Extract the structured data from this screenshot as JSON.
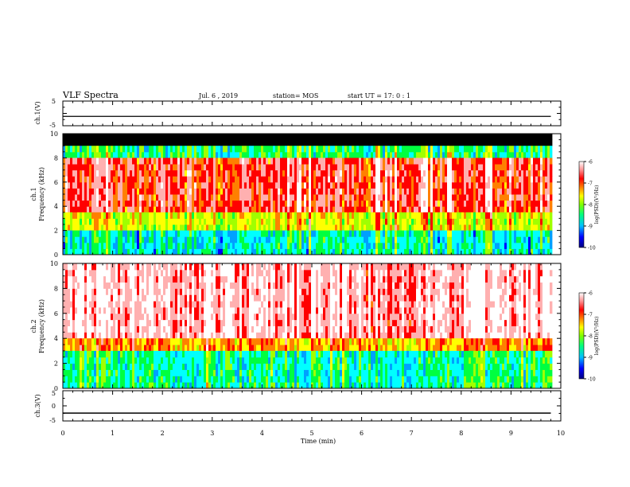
{
  "header": {
    "title": "VLF Spectra",
    "date": "Jul. 6 , 2019",
    "station": "station= MOS",
    "start_ut": "start UT = 17: 0 : 1"
  },
  "colors": {
    "scale": [
      "#000080",
      "#0000ff",
      "#00a0ff",
      "#00ffff",
      "#00ff40",
      "#a0ff00",
      "#ffff00",
      "#ff8000",
      "#ff0000",
      "#ffb0b0",
      "#ffffff"
    ],
    "saturated": "#000000",
    "trace": "#000000"
  },
  "chart_data": [
    {
      "id": "ch1-voltage",
      "type": "line",
      "ylabel": "ch.1(V)",
      "ylim": [
        -5,
        5
      ],
      "yticks": [
        "5",
        "-5"
      ],
      "series": [
        {
          "x": [
            0,
            9.8
          ],
          "values": [
            -1.2,
            -1.2
          ]
        }
      ]
    },
    {
      "id": "ch1-spectrogram",
      "type": "heatmap",
      "ylabel_top": "ch.1",
      "ylabel": "Frequency (kHz)",
      "ylim": [
        0,
        10
      ],
      "yticks": [
        "0",
        "2",
        "4",
        "6",
        "8",
        "10"
      ],
      "colorbar": {
        "label": "log(PSD)(V²/Hz)",
        "range": [
          -10,
          -6
        ],
        "ticks": [
          "-6",
          "-7",
          "-8",
          "-9",
          "-10"
        ]
      },
      "bands": [
        {
          "from_khz": 9.0,
          "to_khz": 10.0,
          "level": "saturated"
        },
        {
          "from_khz": 8.0,
          "to_khz": 9.0,
          "level": -8.5
        },
        {
          "from_khz": 3.5,
          "to_khz": 8.0,
          "level": -6.8
        },
        {
          "from_khz": 2.0,
          "to_khz": 3.5,
          "level": -7.8
        },
        {
          "from_khz": 0.0,
          "to_khz": 2.0,
          "level": -8.8
        }
      ]
    },
    {
      "id": "ch2-spectrogram",
      "type": "heatmap",
      "ylabel_top": "ch.2",
      "ylabel": "Frequency (kHz)",
      "ylim": [
        0,
        10
      ],
      "yticks": [
        "0",
        "2",
        "4",
        "6",
        "8",
        "10"
      ],
      "colorbar": {
        "label": "log(PSD)(V²/Hz)",
        "range": [
          -10,
          -6
        ],
        "ticks": [
          "-6",
          "-7",
          "-8",
          "-9",
          "-10"
        ]
      },
      "bands": [
        {
          "from_khz": 4.0,
          "to_khz": 10.0,
          "level": -6.3
        },
        {
          "from_khz": 3.0,
          "to_khz": 4.0,
          "level": -7.3
        },
        {
          "from_khz": 0.0,
          "to_khz": 3.0,
          "level": -8.6
        }
      ]
    },
    {
      "id": "ch3-voltage",
      "type": "line",
      "ylabel": "ch.3(V)",
      "ylim": [
        -5,
        5
      ],
      "yticks": [
        "5",
        "0",
        "-5"
      ],
      "series": [
        {
          "x": [
            0,
            9.8
          ],
          "values": [
            -2.4,
            -2.4
          ]
        }
      ]
    }
  ],
  "x_axis": {
    "label": "Time (min)",
    "range": [
      0,
      10
    ],
    "ticks": [
      "0",
      "1",
      "2",
      "3",
      "4",
      "5",
      "6",
      "7",
      "8",
      "9",
      "10"
    ]
  }
}
